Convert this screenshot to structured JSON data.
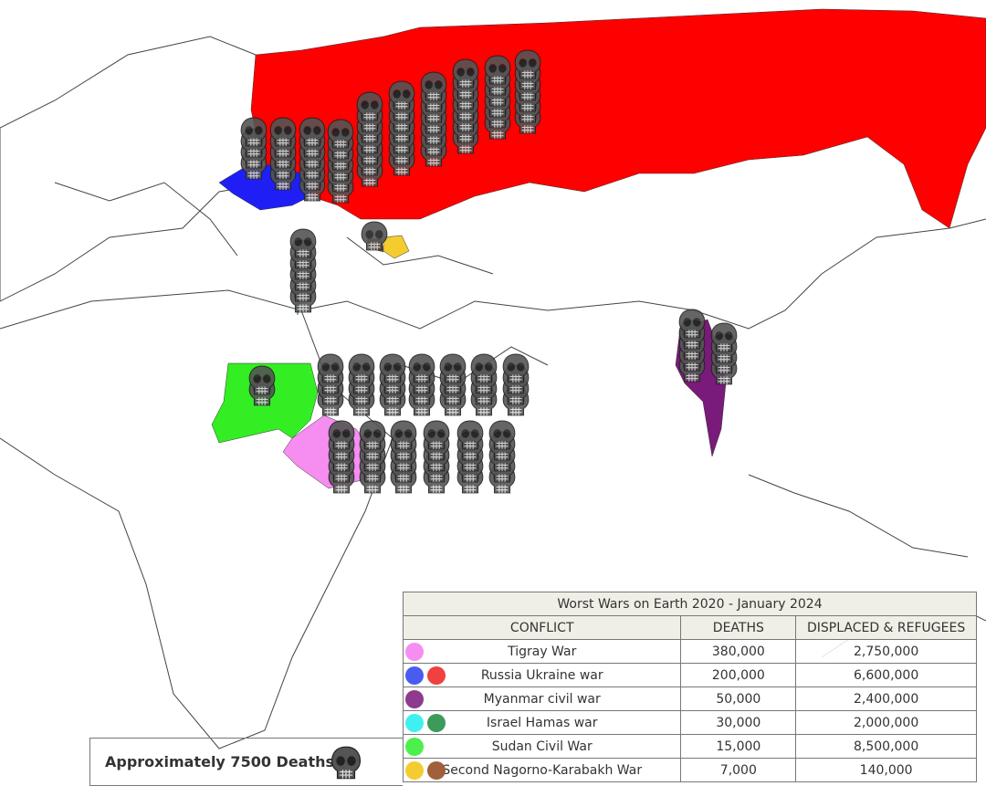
{
  "table": {
    "title": "Worst Wars on Earth 2020 - January 2024",
    "columns": [
      "CONFLICT",
      "DEATHS",
      "DISPLACED & REFUGEES"
    ],
    "rows": [
      {
        "conflict": "Tigray War",
        "deaths": "380,000",
        "displaced": "2,750,000",
        "colors": [
          "#f58ef0"
        ]
      },
      {
        "conflict": "Russia Ukraine war",
        "deaths": "200,000",
        "displaced": "6,600,000",
        "colors": [
          "#4a5cf0",
          "#f04040"
        ]
      },
      {
        "conflict": "Myanmar civil war",
        "deaths": "50,000",
        "displaced": "2,400,000",
        "colors": [
          "#8e3a8e"
        ]
      },
      {
        "conflict": "Israel Hamas war",
        "deaths": "30,000",
        "displaced": "2,000,000",
        "colors": [
          "#40f0f0",
          "#3e9a5a"
        ]
      },
      {
        "conflict": "Sudan Civil War",
        "deaths": "15,000",
        "displaced": "8,500,000",
        "colors": [
          "#4cf04c"
        ]
      },
      {
        "conflict": "Second Nagorno-Karabakh War",
        "deaths": "7,000",
        "displaced": "140,000",
        "colors": [
          "#f5cc30",
          "#a0603a"
        ]
      }
    ]
  },
  "legend": {
    "text": "Approximately 7500 Deaths"
  }
}
